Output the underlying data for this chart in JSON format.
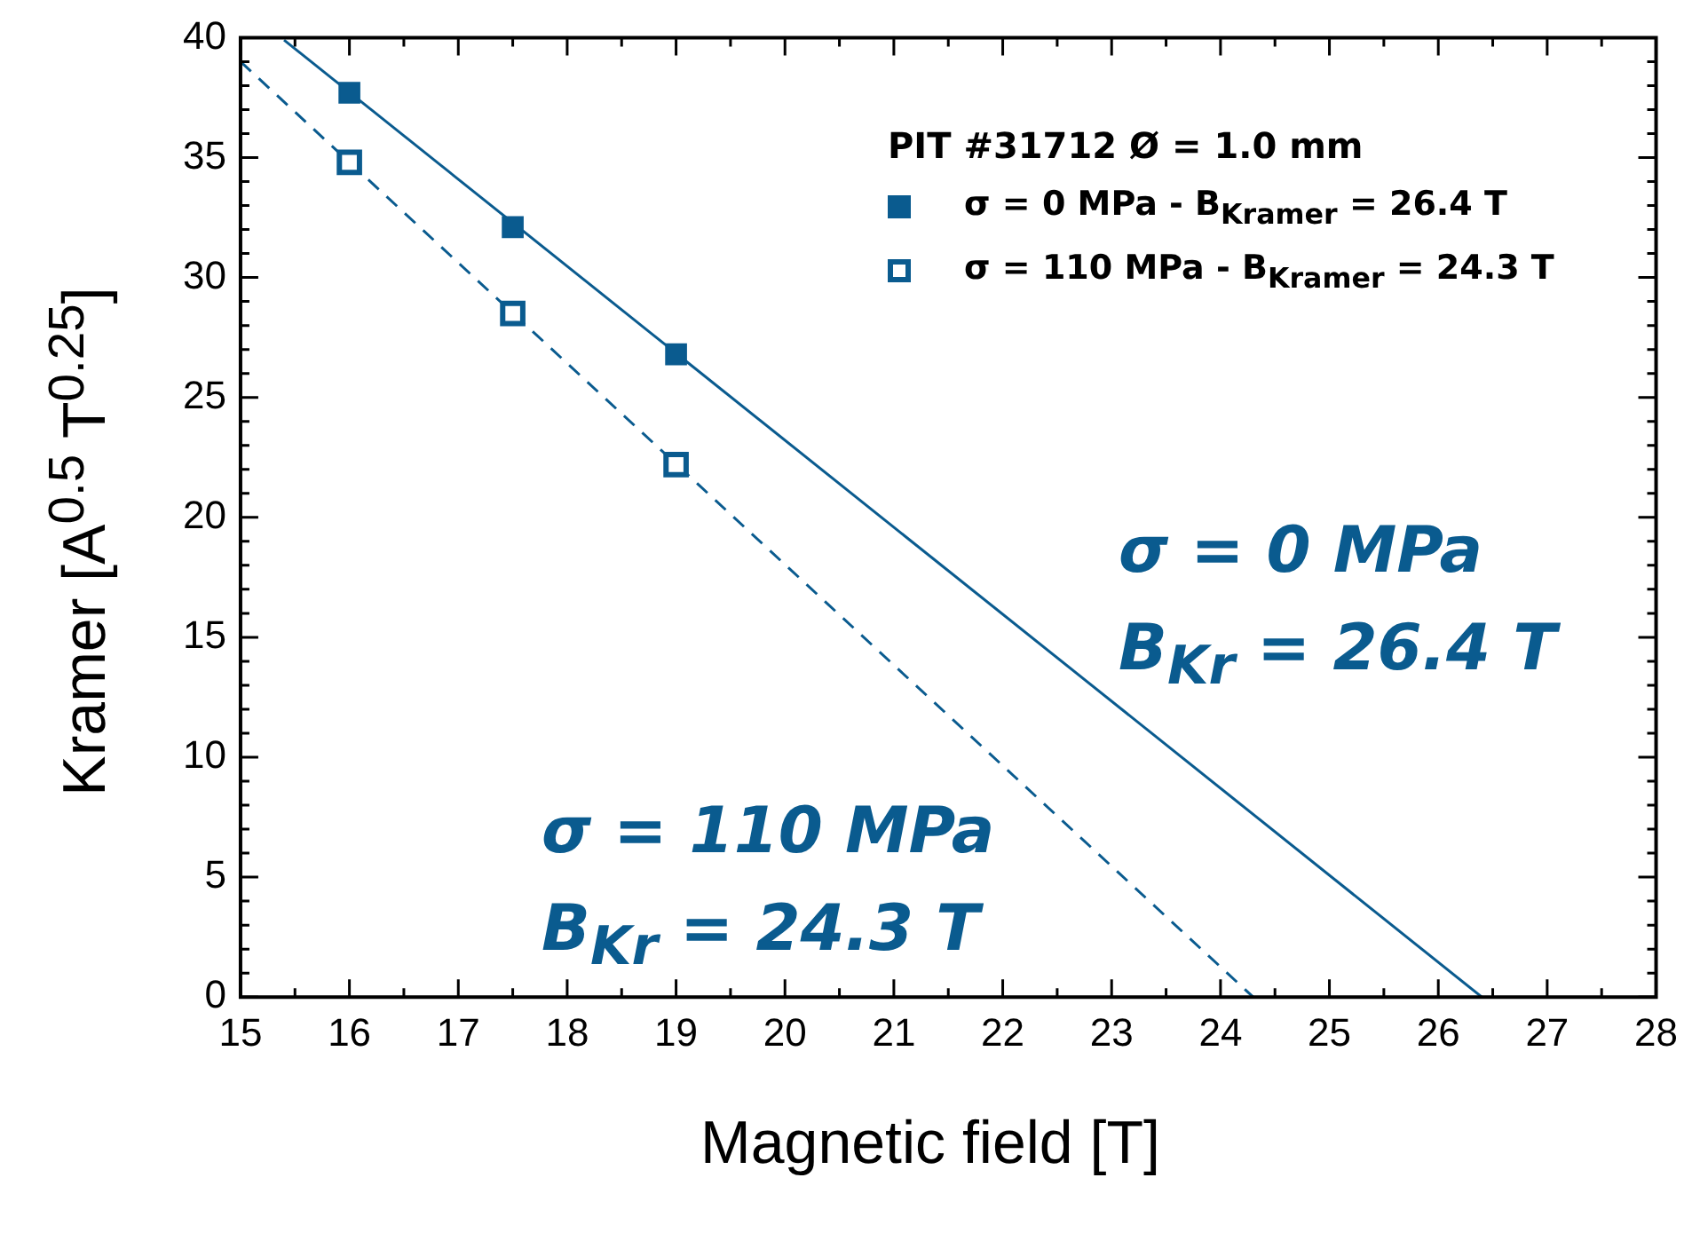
{
  "chart_data": {
    "type": "scatter",
    "xlabel": "Magnetic field [T]",
    "ylabel": "Kramer [A$^{0.5}$ T$^{0.25}$]",
    "legend_title": "PIT #31712 Ø = 1.0 mm",
    "legend": "top right",
    "xlim": [
      15,
      28
    ],
    "xticks": [
      15,
      16,
      17,
      18,
      19,
      20,
      21,
      22,
      23,
      24,
      25,
      26,
      27,
      28
    ],
    "ylim": [
      0,
      40
    ],
    "yticks": [
      0,
      5,
      10,
      15,
      20,
      25,
      30,
      35,
      40
    ],
    "grid": false,
    "marker": "square",
    "series": [
      {
        "name": "σ = 0 MPa - B$_{Kramer}$ = 26.4 T",
        "color": "#0a5b8f",
        "x": [
          16,
          17.5,
          19
        ],
        "values": [
          37.7,
          32.1,
          26.8
        ]
      },
      {
        "name": "σ = 110 MPa - B$_{Kramer}$ = 24.3 T",
        "color": "#0a5b8f",
        "x": [
          16,
          17.5,
          19
        ],
        "values": [
          34.8,
          28.5,
          22.2
        ]
      },
      {
        "type": "line",
        "color": "#0a5b8f",
        "line_style": "solid",
        "marker": "none",
        "x": [
          15.4,
          26.4
        ],
        "values": [
          39.9,
          0
        ]
      },
      {
        "type": "line",
        "color": "#0a5b8f",
        "line_style": "dashed",
        "marker": "none",
        "x": [
          15,
          24.3
        ],
        "values": [
          39,
          0
        ]
      }
    ],
    "annotations": [
      "σ = 0 MPa",
      "B$_{Kr}$ = 26.4 T",
      "σ = 110 MPa",
      "B$_{Kr}$ = 24.3 T"
    ]
  }
}
